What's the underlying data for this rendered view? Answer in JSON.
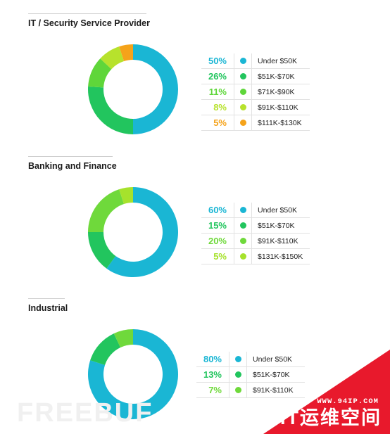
{
  "chart_data": [
    {
      "type": "pie",
      "title": "IT / Security Service Provider",
      "categories": [
        "Under $50K",
        "$51K-$70K",
        "$71K-$90K",
        "$91K-$110K",
        "$111K-$130K"
      ],
      "values": [
        50,
        26,
        11,
        8,
        5
      ],
      "labels": [
        "50%",
        "26%",
        "11%",
        "8%",
        "5%"
      ],
      "colors": [
        "#1ab6d4",
        "#22c55e",
        "#5fd63a",
        "#b7e22c",
        "#f5a31a"
      ]
    },
    {
      "type": "pie",
      "title": "Banking and Finance",
      "categories": [
        "Under $50K",
        "$51K-$70K",
        "$91K-$110K",
        "$131K-$150K"
      ],
      "values": [
        60,
        15,
        20,
        5
      ],
      "labels": [
        "60%",
        "15%",
        "20%",
        "5%"
      ],
      "colors": [
        "#1ab6d4",
        "#22c55e",
        "#6fd93b",
        "#a6e22c"
      ]
    },
    {
      "type": "pie",
      "title": "Industrial",
      "categories": [
        "Under $50K",
        "$51K-$70K",
        "$91K-$110K"
      ],
      "values": [
        80,
        13,
        7
      ],
      "labels": [
        "80%",
        "13%",
        "7%"
      ],
      "colors": [
        "#1ab6d4",
        "#22c55e",
        "#6fd93b"
      ]
    }
  ],
  "watermark": {
    "left_text": "FREEBUF",
    "url": "WWW.94IP.COM",
    "brand": "IT运维空间",
    "banner_color": "#e8192c"
  }
}
